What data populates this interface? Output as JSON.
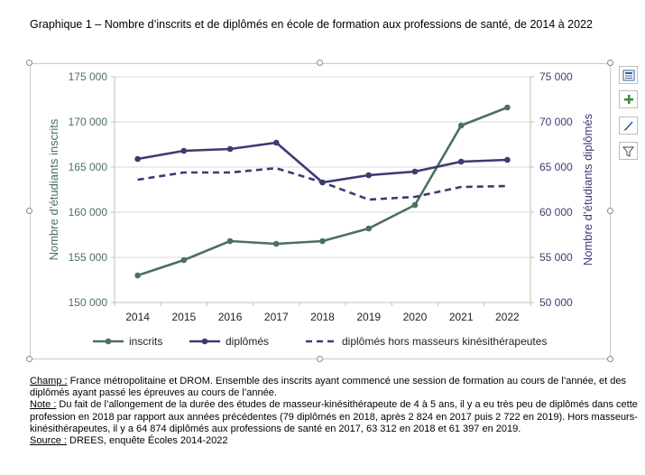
{
  "title": "Graphique 1 – Nombre d’inscrits et de diplômés en école de formation aux professions de santé, de 2014 à 2022",
  "chart_data": {
    "type": "line",
    "title": "Graphique 1 – Nombre d’inscrits et de diplômés en école de formation aux professions de santé, de 2014 à 2022",
    "categories": [
      "2014",
      "2015",
      "2016",
      "2017",
      "2018",
      "2019",
      "2020",
      "2021",
      "2022"
    ],
    "xlabel": "",
    "ylabel": "Nombre d’étudiants inscrits",
    "y2label": "Nombre d’étudiants diplômés",
    "ylim": [
      150000,
      175000
    ],
    "y2lim": [
      50000,
      75000
    ],
    "yticks": [
      "150 000",
      "155 000",
      "160 000",
      "165 000",
      "170 000",
      "175 000"
    ],
    "y2ticks": [
      "50 000",
      "55 000",
      "60 000",
      "65 000",
      "70 000",
      "75 000"
    ],
    "grid": true,
    "legend_position": "bottom",
    "series": [
      {
        "name": "inscrits",
        "axis": "left",
        "color": "#4a7060",
        "dash": false,
        "values": [
          153000,
          154700,
          156800,
          156500,
          156800,
          158200,
          160800,
          169600,
          171600
        ]
      },
      {
        "name": "diplômés",
        "axis": "right",
        "color": "#3b3b73",
        "dash": false,
        "values": [
          65900,
          66800,
          67000,
          67700,
          63300,
          64100,
          64500,
          65600,
          65800
        ]
      },
      {
        "name": "diplômés hors masseurs kinésithérapeutes",
        "axis": "right",
        "color": "#3b3b73",
        "dash": true,
        "values": [
          63600,
          64400,
          64400,
          64874,
          63312,
          61397,
          61700,
          62800,
          62900
        ]
      }
    ]
  },
  "notes": {
    "champ_label": "Champ :",
    "champ_text": " France métropolitaine et DROM. Ensemble des inscrits ayant commencé une session de formation au cours de l’année, et des diplômés ayant passé les épreuves au cours de l’année.",
    "note_label": "Note :",
    "note_text": " Du fait de l’allongement de la durée des études de masseur-kinésithérapeute de 4 à 5 ans, il y a eu très peu de diplômés dans cette profession en 2018 par rapport aux années précédentes (79 diplômés en 2018, après 2 824 en 2017 puis 2 722 en 2019). Hors masseurs-kinésithérapeutes, il y a 64 874 diplômés aux professions de santé en 2017, 63 312 en 2018 et 61 397 en 2019.",
    "source_label": "Source :",
    "source_text": " DREES, enquête Écoles 2014-2022"
  },
  "side_tools": [
    {
      "icon": "chart-layout-icon"
    },
    {
      "icon": "plus-icon"
    },
    {
      "icon": "brush-icon"
    },
    {
      "icon": "filter-icon"
    }
  ]
}
